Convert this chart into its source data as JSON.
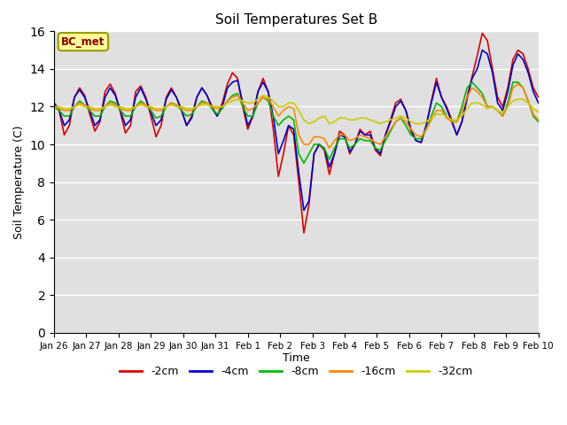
{
  "title": "Soil Temperatures Set B",
  "xlabel": "Time",
  "ylabel": "Soil Temperature (C)",
  "ylim": [
    0,
    16
  ],
  "yticks": [
    0,
    2,
    4,
    6,
    8,
    10,
    12,
    14,
    16
  ],
  "bg_color": "#e0e0e0",
  "annotation_text": "BC_met",
  "annotation_bg": "#ffff99",
  "annotation_border": "#999900",
  "series_colors": [
    "#dd0000",
    "#0000cc",
    "#00bb00",
    "#ff8800",
    "#cccc00"
  ],
  "series_labels": [
    "-2cm",
    "-4cm",
    "-8cm",
    "-16cm",
    "-32cm"
  ],
  "line_width": 1.2,
  "xtick_labels": [
    "Jan 26",
    "Jan 27",
    "Jan 28",
    "Jan 29",
    "Jan 30",
    "Jan 31",
    "Feb 1",
    "Feb 2",
    "Feb 3",
    "Feb 4",
    "Feb 5",
    "Feb 6",
    "Feb 7",
    "Feb 8",
    "Feb 9",
    "Feb 10"
  ],
  "num_days": 16,
  "pts_per_day": 6,
  "data_2cm": [
    12.2,
    11.8,
    10.5,
    11.0,
    12.5,
    13.0,
    12.6,
    11.6,
    10.7,
    11.2,
    12.8,
    13.2,
    12.7,
    11.7,
    10.6,
    11.0,
    12.8,
    13.1,
    12.5,
    11.5,
    10.4,
    11.0,
    12.5,
    13.0,
    12.5,
    11.8,
    11.0,
    11.5,
    12.5,
    13.0,
    12.6,
    12.0,
    11.5,
    12.2,
    13.2,
    13.8,
    13.5,
    12.0,
    10.8,
    11.5,
    12.8,
    13.5,
    12.8,
    10.8,
    8.3,
    9.5,
    11.0,
    10.5,
    8.0,
    5.3,
    6.8,
    9.5,
    10.0,
    9.7,
    8.4,
    9.5,
    10.7,
    10.5,
    9.5,
    10.0,
    10.8,
    10.5,
    10.7,
    9.7,
    9.4,
    10.5,
    11.3,
    12.2,
    12.4,
    11.8,
    10.7,
    10.2,
    10.1,
    11.0,
    12.3,
    13.5,
    12.5,
    12.0,
    11.3,
    10.5,
    11.2,
    12.5,
    13.6,
    14.7,
    15.9,
    15.5,
    14.0,
    12.5,
    12.0,
    13.0,
    14.5,
    15.0,
    14.8,
    14.0,
    13.0,
    12.5
  ],
  "data_4cm": [
    12.2,
    11.8,
    11.0,
    11.3,
    12.5,
    12.9,
    12.5,
    11.8,
    11.0,
    11.3,
    12.5,
    13.0,
    12.6,
    11.8,
    11.0,
    11.3,
    12.5,
    13.0,
    12.4,
    11.7,
    11.0,
    11.3,
    12.4,
    12.9,
    12.5,
    11.8,
    11.0,
    11.4,
    12.5,
    13.0,
    12.6,
    11.9,
    11.5,
    12.0,
    13.0,
    13.3,
    13.4,
    12.2,
    11.0,
    11.5,
    12.8,
    13.3,
    12.8,
    11.5,
    9.5,
    10.2,
    11.0,
    10.8,
    8.5,
    6.5,
    7.0,
    9.5,
    10.0,
    9.8,
    8.8,
    9.5,
    10.5,
    10.4,
    9.6,
    10.0,
    10.7,
    10.5,
    10.5,
    9.8,
    9.5,
    10.5,
    11.2,
    12.0,
    12.3,
    11.8,
    10.8,
    10.2,
    10.1,
    11.0,
    12.2,
    13.3,
    12.5,
    11.9,
    11.2,
    10.5,
    11.2,
    12.4,
    13.5,
    14.0,
    15.0,
    14.8,
    13.8,
    12.2,
    11.8,
    12.8,
    14.2,
    14.8,
    14.5,
    13.8,
    12.8,
    12.2
  ],
  "data_8cm": [
    12.0,
    11.8,
    11.5,
    11.5,
    12.0,
    12.3,
    12.1,
    11.8,
    11.5,
    11.5,
    12.0,
    12.3,
    12.2,
    11.8,
    11.5,
    11.5,
    12.0,
    12.3,
    12.1,
    11.8,
    11.4,
    11.5,
    12.0,
    12.2,
    12.1,
    11.8,
    11.5,
    11.6,
    12.0,
    12.3,
    12.2,
    11.9,
    11.6,
    11.9,
    12.3,
    12.6,
    12.7,
    12.0,
    11.5,
    11.5,
    12.2,
    12.5,
    12.3,
    11.5,
    11.0,
    11.3,
    11.5,
    11.3,
    9.5,
    9.0,
    9.5,
    10.0,
    10.0,
    9.8,
    9.2,
    9.8,
    10.3,
    10.3,
    9.8,
    10.0,
    10.3,
    10.2,
    10.2,
    9.8,
    9.7,
    10.2,
    10.7,
    11.2,
    11.4,
    11.0,
    10.5,
    10.3,
    10.3,
    10.8,
    11.5,
    12.2,
    12.0,
    11.5,
    11.2,
    11.2,
    12.0,
    13.0,
    13.3,
    13.0,
    12.7,
    12.0,
    12.0,
    11.8,
    11.5,
    12.2,
    13.3,
    13.3,
    13.0,
    12.3,
    11.5,
    11.2
  ],
  "data_16cm": [
    12.0,
    11.9,
    11.8,
    11.8,
    12.0,
    12.2,
    12.1,
    11.9,
    11.8,
    11.8,
    12.0,
    12.2,
    12.1,
    11.9,
    11.8,
    11.8,
    12.0,
    12.2,
    12.1,
    11.9,
    11.8,
    11.8,
    12.0,
    12.2,
    12.1,
    11.9,
    11.8,
    11.8,
    12.0,
    12.2,
    12.2,
    12.0,
    11.9,
    12.0,
    12.3,
    12.5,
    12.6,
    12.2,
    11.8,
    11.9,
    12.2,
    12.5,
    12.4,
    12.0,
    11.5,
    11.8,
    12.0,
    11.9,
    10.5,
    10.0,
    10.0,
    10.4,
    10.4,
    10.3,
    9.8,
    10.2,
    10.5,
    10.5,
    10.2,
    10.3,
    10.5,
    10.4,
    10.3,
    10.1,
    10.0,
    10.4,
    10.8,
    11.2,
    11.4,
    11.2,
    10.8,
    10.5,
    10.4,
    10.8,
    11.3,
    11.8,
    11.8,
    11.4,
    11.2,
    11.2,
    11.7,
    12.5,
    13.0,
    12.8,
    12.5,
    12.0,
    12.0,
    11.8,
    11.5,
    12.0,
    13.0,
    13.2,
    13.0,
    12.3,
    11.6,
    11.3
  ],
  "data_32cm": [
    12.0,
    12.0,
    11.9,
    11.9,
    12.0,
    12.1,
    12.0,
    12.0,
    11.9,
    11.9,
    12.0,
    12.1,
    12.0,
    12.0,
    11.9,
    11.9,
    12.0,
    12.1,
    12.0,
    12.0,
    11.9,
    11.9,
    12.0,
    12.1,
    12.0,
    12.0,
    11.9,
    11.9,
    12.0,
    12.1,
    12.1,
    12.0,
    12.0,
    12.0,
    12.2,
    12.3,
    12.4,
    12.3,
    12.2,
    12.2,
    12.4,
    12.6,
    12.5,
    12.3,
    12.0,
    12.0,
    12.2,
    12.2,
    11.8,
    11.3,
    11.1,
    11.2,
    11.4,
    11.5,
    11.1,
    11.2,
    11.4,
    11.4,
    11.3,
    11.3,
    11.4,
    11.4,
    11.3,
    11.2,
    11.1,
    11.2,
    11.3,
    11.4,
    11.5,
    11.4,
    11.2,
    11.1,
    11.1,
    11.2,
    11.4,
    11.6,
    11.6,
    11.5,
    11.3,
    11.3,
    11.5,
    11.9,
    12.2,
    12.2,
    12.1,
    11.9,
    12.0,
    11.8,
    11.7,
    12.0,
    12.3,
    12.4,
    12.4,
    12.2,
    11.9,
    11.7
  ]
}
